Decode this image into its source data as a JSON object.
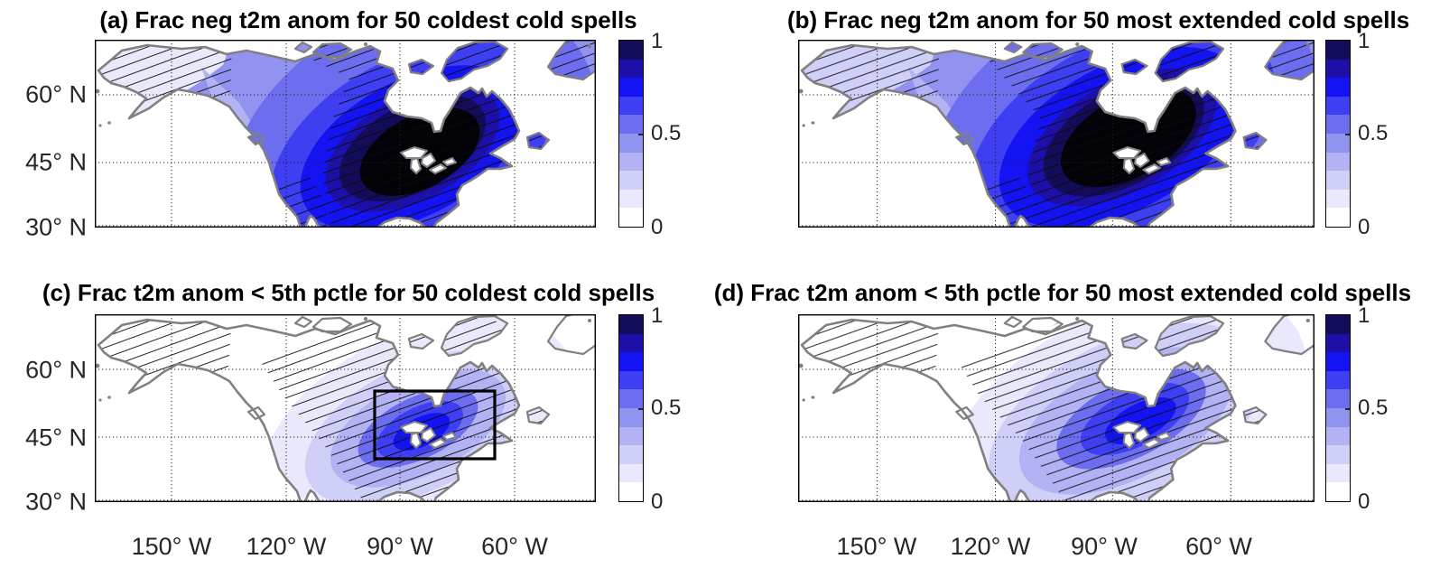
{
  "meta": {
    "background": "#ffffff",
    "figure_kind": "2x2 filled-contour map figure of North America"
  },
  "panels": [
    {
      "id": "a",
      "title": "(a) Frac neg t2m anom for 50 coldest cold spells"
    },
    {
      "id": "b",
      "title": "(b) Frac neg t2m anom for 50 most extended cold spells"
    },
    {
      "id": "c",
      "title": "(c) Frac t2m anom < 5th pctle for 50 coldest cold spells"
    },
    {
      "id": "d",
      "title": "(d) Frac t2m anom < 5th pctle for 50 most extended cold spells"
    }
  ],
  "axes": {
    "lat_labels": [
      "60° N",
      "45° N",
      "30° N"
    ],
    "lon_labels": [
      "150° W",
      "120° W",
      "90° W",
      "60° W"
    ]
  },
  "colorbar": {
    "tick_top": "1",
    "tick_mid": "0.5",
    "tick_bottom": "0",
    "min": 0,
    "max": 1,
    "levels": 10,
    "palette_low_to_high": [
      "#ffffff",
      "#e9e9fb",
      "#cfcff8",
      "#b2b2f4",
      "#9292f0",
      "#6d6df0",
      "#3e3ef2",
      "#1414f2",
      "#1d10a8",
      "#130c58"
    ],
    "map_extreme_color": "#020208",
    "coastline_color": "#808080"
  },
  "chart_data": {
    "type": "heatmap",
    "subtype": "filled-contour geographic maps (plate carree), North America, with significance hatching",
    "panels": [
      {
        "label": "(a)",
        "title": "(a) Frac neg t2m anom for 50 coldest cold spells",
        "quantity": "fraction of negative 2-m temperature anomalies",
        "sample": "50 coldest cold spells",
        "approx_values": {
          "alaska": "0.2-0.4",
          "west_coast": "0.4-0.6",
          "central_plains": "0.6-0.8",
          "great_lakes_to_quebec": "0.95-1.0",
          "atlantic_canada": "0.7-0.9",
          "southwest_us": "0.3-0.5"
        },
        "max_region": "Great Lakes / southern Hudson Bay / Quebec (fraction ~ 1, near-black shading)",
        "hatching": true
      },
      {
        "label": "(b)",
        "title": "(b) Frac neg t2m anom for 50 most extended cold spells",
        "quantity": "fraction of negative 2-m temperature anomalies",
        "sample": "50 most extended cold spells",
        "approx_values": {
          "alaska": "0.3-0.5",
          "west_coast": "0.4-0.6",
          "central_plains": "0.6-0.8",
          "great_lakes_to_quebec": "0.95-1.0",
          "atlantic_canada": "0.7-0.9"
        },
        "max_region": "slightly larger near-1 area than (a), shifted toward Hudson Bay / northern Ontario-Quebec",
        "hatching": true
      },
      {
        "label": "(c)",
        "title": "(c) Frac t2m anom < 5th pctle for 50 coldest cold spells",
        "quantity": "fraction of t2m anomalies below the 5th percentile",
        "sample": "50 coldest cold spells",
        "approx_values": {
          "alaska": "0-0.1",
          "western_us": "0-0.1",
          "central_canada": "0.1-0.3",
          "great_lakes_core": "0.5-0.7",
          "east_coast": "0.2-0.4"
        },
        "max_region": "western Great Lakes region (fraction ~ 0.6-0.7)",
        "hatching": true,
        "overlay_box": {
          "style": "black rectangle",
          "lon_w_range": [
            97,
            65
          ],
          "lat_n_range": [
            40,
            55
          ]
        }
      },
      {
        "label": "(d)",
        "title": "(d) Frac t2m anom < 5th pctle for 50 most extended cold spells",
        "quantity": "fraction of t2m anomalies below the 5th percentile",
        "sample": "50 most extended cold spells",
        "approx_values": {
          "alaska": "0-0.1",
          "western_us": "0-0.1",
          "central_canada": "0.2-0.4",
          "great_lakes_core": "0.5-0.7",
          "east_coast": "0.2-0.4"
        },
        "max_region": "broader moderate-fraction band from NWT through Great Lakes to the northeast coast",
        "hatching": true
      }
    ],
    "colorbar": {
      "range": [
        0,
        1
      ],
      "ticks": [
        0,
        0.5,
        1
      ],
      "levels": 10,
      "orientation": "vertical"
    },
    "axes": {
      "lat_ticks_deg_n": [
        30,
        45,
        60
      ],
      "lon_ticks_deg_w": [
        150,
        120,
        90,
        60
      ],
      "approx_lon_extent_deg_w": [
        170,
        39
      ],
      "approx_lat_extent_deg_n": [
        30,
        72
      ],
      "grid": "dotted black graticule"
    },
    "hatching_style": "thin black diagonal lines rising to the right over significant / highlighted regions"
  }
}
